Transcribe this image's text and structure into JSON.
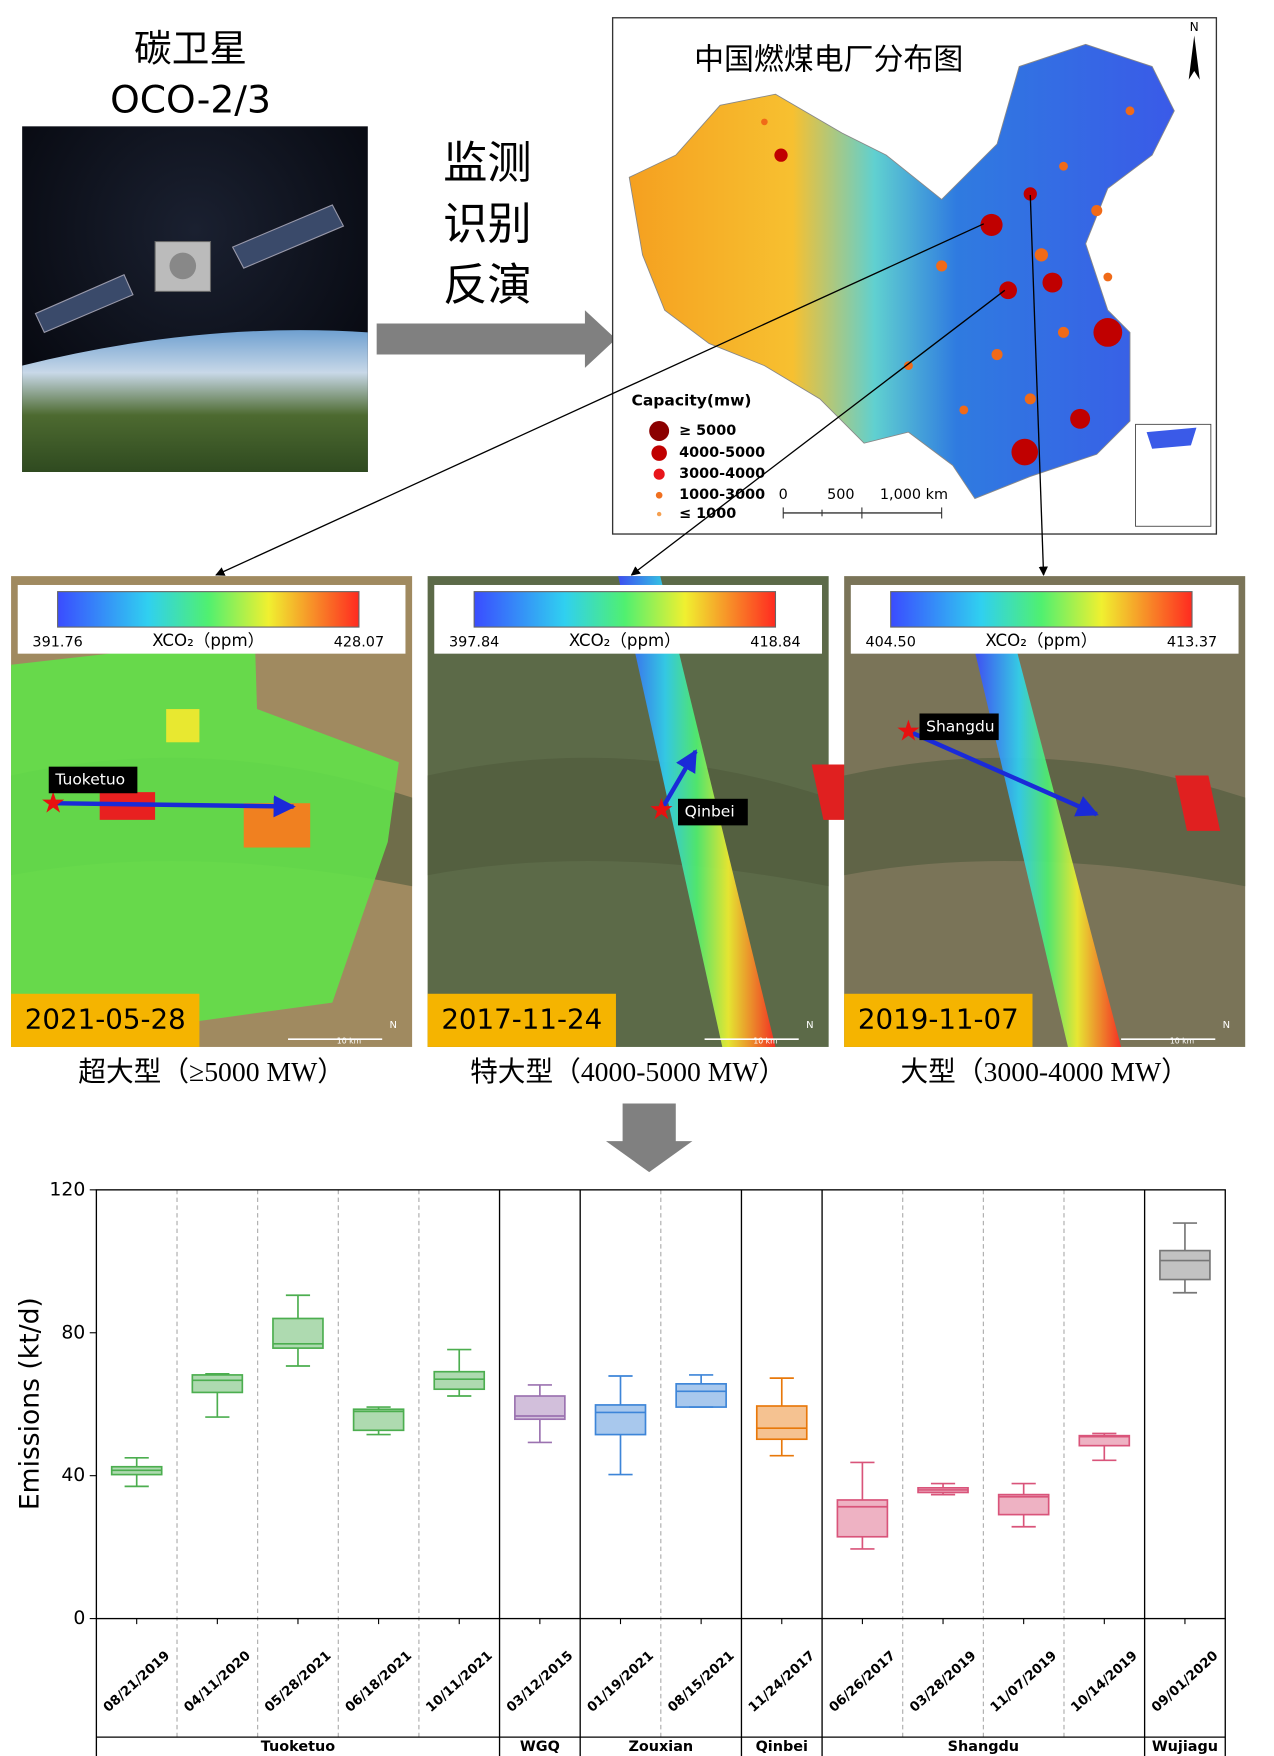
{
  "left": {
    "title": "碳卫星",
    "subtitle": "OCO-2/3"
  },
  "process": [
    "监测",
    "识别",
    "反演"
  ],
  "map": {
    "title": "中国燃煤电厂分布图",
    "north": "N",
    "legend_title": "Capacity(mw)",
    "legend": [
      "≥ 5000",
      "4000-5000",
      "3000-4000",
      "1000-3000",
      "≤ 1000"
    ],
    "scale": [
      "0",
      "500",
      "1,000 km"
    ]
  },
  "panels": [
    {
      "colorbar_min": "391.76",
      "colorbar_max": "428.07",
      "colorbar_label": "XCO₂（ppm）",
      "site": "Tuoketuo",
      "date": "2021-05-28",
      "scale": "10 km",
      "north": "N",
      "caption": "超大型（≥5000 MW）"
    },
    {
      "colorbar_min": "397.84",
      "colorbar_max": "418.84",
      "colorbar_label": "XCO₂（ppm）",
      "site": "Qinbei",
      "date": "2017-11-24",
      "scale": "10 km",
      "north": "N",
      "caption": "特大型（4000-5000 MW）"
    },
    {
      "colorbar_min": "404.50",
      "colorbar_max": "413.37",
      "colorbar_label": "XCO₂（ppm）",
      "site": "Shangdu",
      "date": "2019-11-07",
      "scale": "10 km",
      "north": "N",
      "caption": "大型（3000-4000 MW）"
    }
  ],
  "chart_data": {
    "type": "box",
    "y_label": "Emissions (kt/d)",
    "ylim": [
      0,
      120
    ],
    "yticks": [
      0,
      40,
      80,
      120
    ],
    "groups": [
      {
        "name": "Tuoketuo",
        "color": "#4cae4f",
        "boxes": [
          {
            "label": "08/21/2019",
            "whislo": 37,
            "q1": 40.3,
            "med": 41.5,
            "q3": 42.5,
            "whishi": 45
          },
          {
            "label": "04/11/2020",
            "whislo": 56.4,
            "q1": 63.3,
            "med": 66.7,
            "q3": 68.2,
            "whishi": 68.5
          },
          {
            "label": "05/28/2021",
            "whislo": 70.7,
            "q1": 75.7,
            "med": 76.9,
            "q3": 84,
            "whishi": 90.5
          },
          {
            "label": "06/18/2021",
            "whislo": 51.5,
            "q1": 52.7,
            "med": 58,
            "q3": 58.6,
            "whishi": 59.2
          },
          {
            "label": "10/11/2021",
            "whislo": 62.3,
            "q1": 64.2,
            "med": 67,
            "q3": 69.1,
            "whishi": 75.3
          }
        ]
      },
      {
        "name": "WGQ",
        "color": "#9b72b0",
        "boxes": [
          {
            "label": "03/12/2015",
            "whislo": 49.3,
            "q1": 55.8,
            "med": 56.7,
            "q3": 62.3,
            "whishi": 65.4
          }
        ]
      },
      {
        "name": "Zouxian",
        "color": "#3d85d8",
        "boxes": [
          {
            "label": "01/19/2021",
            "whislo": 40.3,
            "q1": 51.5,
            "med": 57.7,
            "q3": 59.8,
            "whishi": 67.9
          },
          {
            "label": "08/15/2021",
            "whislo": 59.2,
            "q1": 59.2,
            "med": 63.6,
            "q3": 65.7,
            "whishi": 68.2
          }
        ]
      },
      {
        "name": "Qinbei",
        "color": "#e8780a",
        "boxes": [
          {
            "label": "11/24/2017",
            "whislo": 45.6,
            "q1": 50.2,
            "med": 53.3,
            "q3": 59.5,
            "whishi": 67.3
          }
        ]
      },
      {
        "name": "Shangdu",
        "color": "#d9547a",
        "boxes": [
          {
            "label": "06/26/2017",
            "whislo": 19.5,
            "q1": 22.9,
            "med": 31.3,
            "q3": 33.2,
            "whishi": 43.7
          },
          {
            "label": "03/28/2019",
            "whislo": 34.7,
            "q1": 35.3,
            "med": 36,
            "q3": 36.6,
            "whishi": 37.8
          },
          {
            "label": "11/07/2019",
            "whislo": 25.7,
            "q1": 29.1,
            "med": 34.1,
            "q3": 34.7,
            "whishi": 37.8
          },
          {
            "label": "10/14/2019",
            "whislo": 44.3,
            "q1": 48.4,
            "med": 50.9,
            "q3": 51.2,
            "whishi": 51.8
          }
        ]
      },
      {
        "name": "Wujiagu",
        "color": "#777777",
        "boxes": [
          {
            "label": "09/01/2020",
            "whislo": 91.2,
            "q1": 94.9,
            "med": 100.2,
            "q3": 103,
            "whishi": 110.7
          }
        ]
      }
    ]
  }
}
